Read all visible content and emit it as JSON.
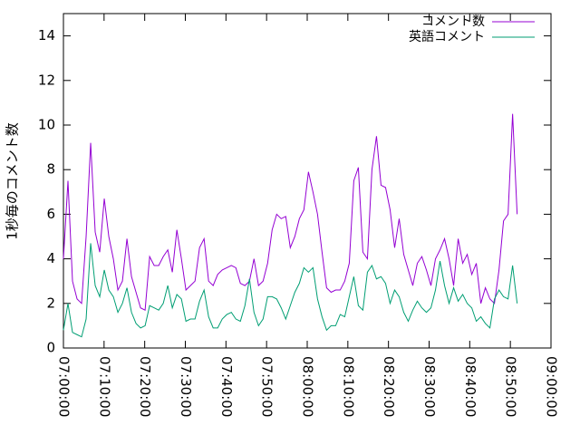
{
  "chart_data": {
    "type": "line",
    "ylabel": "1秒毎のコメント数",
    "x": [
      "07:00:00",
      "07:01:07",
      "07:02:14",
      "07:03:21",
      "07:04:28",
      "07:05:35",
      "07:06:42",
      "07:07:49",
      "07:08:56",
      "07:10:03",
      "07:11:10",
      "07:12:17",
      "07:13:24",
      "07:14:31",
      "07:15:38",
      "07:16:45",
      "07:17:52",
      "07:18:59",
      "07:20:06",
      "07:21:13",
      "07:22:20",
      "07:23:27",
      "07:24:34",
      "07:25:41",
      "07:26:48",
      "07:27:55",
      "07:29:02",
      "07:30:09",
      "07:31:16",
      "07:32:23",
      "07:33:30",
      "07:34:37",
      "07:35:44",
      "07:36:51",
      "07:37:58",
      "07:39:05",
      "07:40:12",
      "07:41:19",
      "07:42:26",
      "07:43:33",
      "07:44:40",
      "07:45:47",
      "07:46:54",
      "07:48:01",
      "07:49:08",
      "07:50:15",
      "07:51:22",
      "07:52:29",
      "07:53:36",
      "07:54:43",
      "07:55:50",
      "07:56:57",
      "07:58:04",
      "07:59:11",
      "08:00:18",
      "08:01:25",
      "08:02:32",
      "08:03:39",
      "08:04:46",
      "08:05:53",
      "08:07:00",
      "08:08:07",
      "08:09:14",
      "08:10:21",
      "08:11:28",
      "08:12:35",
      "08:13:42",
      "08:14:49",
      "08:15:56",
      "08:17:03",
      "08:18:10",
      "08:19:17",
      "08:20:24",
      "08:21:31",
      "08:22:38",
      "08:23:45",
      "08:24:52",
      "08:25:59",
      "08:27:06",
      "08:28:13",
      "08:29:20",
      "08:30:27",
      "08:31:34",
      "08:32:41",
      "08:33:48",
      "08:34:55",
      "08:36:02",
      "08:37:09",
      "08:38:16",
      "08:39:23",
      "08:40:30",
      "08:41:37",
      "08:42:44",
      "08:43:51",
      "08:44:58",
      "08:46:05",
      "08:47:12",
      "08:48:19",
      "08:49:26",
      "08:50:33",
      "08:51:40"
    ],
    "series": [
      {
        "name": "コメント数",
        "color": "#9400d3",
        "values": [
          4.0,
          7.5,
          3.0,
          2.2,
          2.0,
          5.0,
          9.2,
          5.2,
          4.3,
          6.7,
          5.0,
          4.0,
          2.6,
          3.0,
          4.9,
          3.2,
          2.5,
          1.8,
          1.7,
          4.1,
          3.7,
          3.7,
          4.1,
          4.4,
          3.4,
          5.3,
          4.0,
          2.6,
          2.8,
          3.0,
          4.5,
          4.9,
          3.0,
          2.8,
          3.3,
          3.5,
          3.6,
          3.7,
          3.6,
          2.9,
          2.8,
          3.0,
          4.0,
          2.8,
          3.0,
          3.8,
          5.3,
          6.0,
          5.8,
          5.9,
          4.5,
          5.0,
          5.8,
          6.2,
          7.9,
          7.0,
          6.0,
          4.3,
          2.7,
          2.5,
          2.6,
          2.6,
          3.0,
          3.8,
          7.5,
          8.1,
          4.3,
          4.0,
          8.0,
          9.5,
          7.3,
          7.2,
          6.2,
          4.5,
          5.8,
          4.2,
          3.5,
          2.8,
          3.8,
          4.1,
          3.5,
          2.8,
          4.0,
          4.4,
          4.9,
          4.0,
          2.8,
          4.9,
          3.8,
          4.2,
          3.3,
          3.8,
          2.0,
          2.7,
          2.2,
          2.0,
          3.5,
          5.7,
          6.0,
          10.5,
          6.0
        ]
      },
      {
        "name": "英語コメント",
        "color": "#009e73",
        "values": [
          0.8,
          2.0,
          0.7,
          0.6,
          0.5,
          1.3,
          4.7,
          2.8,
          2.3,
          3.5,
          2.6,
          2.3,
          1.6,
          2.0,
          2.7,
          1.6,
          1.1,
          0.9,
          1.0,
          1.9,
          1.8,
          1.7,
          2.0,
          2.8,
          1.8,
          2.4,
          2.2,
          1.2,
          1.3,
          1.3,
          2.1,
          2.6,
          1.4,
          0.9,
          0.9,
          1.3,
          1.5,
          1.6,
          1.3,
          1.2,
          1.9,
          3.1,
          1.6,
          1.0,
          1.3,
          2.3,
          2.3,
          2.2,
          1.8,
          1.3,
          1.9,
          2.5,
          2.9,
          3.6,
          3.4,
          3.6,
          2.2,
          1.4,
          0.8,
          1.0,
          1.0,
          1.5,
          1.4,
          2.3,
          3.2,
          1.9,
          1.7,
          3.4,
          3.7,
          3.1,
          3.2,
          2.9,
          2.0,
          2.6,
          2.3,
          1.6,
          1.2,
          1.7,
          2.1,
          1.8,
          1.6,
          1.8,
          2.6,
          3.9,
          2.8,
          2.0,
          2.7,
          2.1,
          2.4,
          2.0,
          1.8,
          1.2,
          1.4,
          1.1,
          0.9,
          2.2,
          2.6,
          2.3,
          2.2,
          3.7,
          2.0
        ]
      }
    ],
    "xlim": [
      "07:00:00",
      "09:00:00"
    ],
    "xticks": [
      "07:00:00",
      "07:10:00",
      "07:20:00",
      "07:30:00",
      "07:40:00",
      "07:50:00",
      "08:00:00",
      "08:10:00",
      "08:20:00",
      "08:30:00",
      "08:40:00",
      "08:50:00",
      "09:00:00"
    ],
    "ylim": [
      0,
      15
    ],
    "yticks": [
      0,
      2,
      4,
      6,
      8,
      10,
      12,
      14
    ],
    "legend": "top-right"
  }
}
